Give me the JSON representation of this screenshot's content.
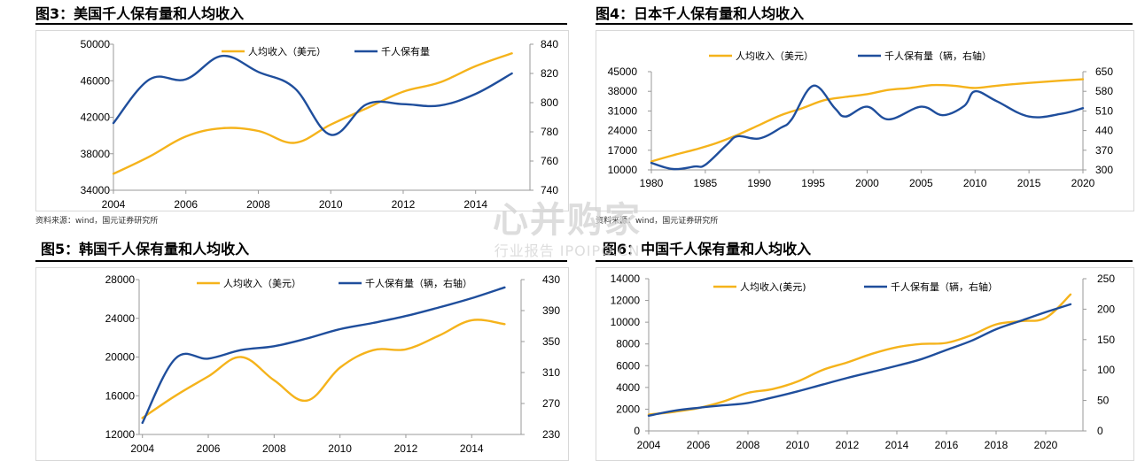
{
  "colors": {
    "income": "#F5B31B",
    "cars": "#1F4E9C"
  },
  "source_note": "资料来源：wind，国元证券研究所",
  "source_note_2": "资料来源：wind，国元证券研究所",
  "watermark": {
    "main": "心并购家",
    "sub": "行业报告 IPOIPO.CN"
  },
  "panels": [
    {
      "title": "图3：美国千人保有量和人均收入"
    },
    {
      "title": "图4：日本千人保有量和人均收入"
    },
    {
      "title": "图5：韩国千人保有量和人均收入"
    },
    {
      "title": "图6：中国千人保有量和人均收入"
    }
  ],
  "chart_data": [
    {
      "type": "line",
      "title": "图3：美国千人保有量和人均收入",
      "legend": [
        "人均收入（美元）",
        "千人保有量"
      ],
      "legend_placement": "top-center",
      "x_ticks": [
        2004,
        2006,
        2008,
        2010,
        2012,
        2014
      ],
      "xlim": [
        2004,
        2015.5
      ],
      "y_left": {
        "ticks": [
          34000,
          38000,
          42000,
          46000,
          50000
        ],
        "lim": [
          34000,
          50000
        ]
      },
      "y_right": {
        "ticks": [
          740,
          760,
          780,
          800,
          820,
          840
        ],
        "lim": [
          740,
          840
        ]
      },
      "series": [
        {
          "name": "人均收入（美元）",
          "axis": "left",
          "color": "#F5B31B",
          "x": [
            2004,
            2005,
            2006,
            2007,
            2008,
            2009,
            2010,
            2011,
            2012,
            2013,
            2014,
            2015
          ],
          "y": [
            35800,
            37700,
            39900,
            40800,
            40500,
            39200,
            41200,
            43000,
            44800,
            45800,
            47600,
            49000
          ]
        },
        {
          "name": "千人保有量",
          "axis": "right",
          "color": "#1F4E9C",
          "x": [
            2004,
            2005,
            2006,
            2007,
            2008,
            2009,
            2010,
            2011,
            2012,
            2013,
            2014,
            2015
          ],
          "y": [
            786,
            816,
            816,
            832,
            821,
            810,
            778,
            799,
            799,
            798,
            806,
            820
          ]
        }
      ]
    },
    {
      "type": "line",
      "title": "图4：日本千人保有量和人均收入",
      "legend": [
        "人均收入（美元）",
        "千人保有量（辆，右轴）"
      ],
      "legend_placement": "top-center",
      "x_ticks": [
        1980,
        1985,
        1990,
        1995,
        2000,
        2005,
        2010,
        2015,
        2020
      ],
      "xlim": [
        1980,
        2020
      ],
      "y_left": {
        "ticks": [
          10000,
          17000,
          24000,
          31000,
          38000,
          45000
        ],
        "lim": [
          10000,
          45000
        ]
      },
      "y_right": {
        "ticks": [
          300,
          370,
          440,
          510,
          580,
          650
        ],
        "lim": [
          300,
          650
        ]
      },
      "series": [
        {
          "name": "人均收入（美元）",
          "axis": "left",
          "color": "#F5B31B",
          "x": [
            1980,
            1982,
            1984,
            1986,
            1988,
            1990,
            1992,
            1994,
            1996,
            1998,
            2000,
            2002,
            2004,
            2006,
            2008,
            2010,
            2012,
            2015,
            2018,
            2020
          ],
          "y": [
            13000,
            15200,
            17200,
            19500,
            22500,
            26000,
            29500,
            32000,
            34800,
            36000,
            37000,
            38500,
            39200,
            40200,
            40000,
            39200,
            40000,
            41000,
            41800,
            42300
          ]
        },
        {
          "name": "千人保有量（辆，右轴）",
          "axis": "right",
          "color": "#1F4E9C",
          "x": [
            1980,
            1982,
            1984,
            1985,
            1987,
            1988,
            1990,
            1992,
            1993,
            1995,
            1997,
            1998,
            2000,
            2002,
            2005,
            2007,
            2009,
            2010,
            2012,
            2015,
            2018,
            2020
          ],
          "y": [
            325,
            303,
            312,
            318,
            390,
            420,
            412,
            450,
            480,
            600,
            520,
            490,
            525,
            480,
            525,
            495,
            528,
            580,
            545,
            490,
            500,
            520
          ]
        }
      ]
    },
    {
      "type": "line",
      "title": "图5：韩国千人保有量和人均收入",
      "legend": [
        "人均收入（美元）",
        "千人保有量（辆，右轴）"
      ],
      "legend_placement": "top-center",
      "x_ticks": [
        2004,
        2006,
        2008,
        2010,
        2012,
        2014
      ],
      "xlim": [
        2003.9,
        2015.5
      ],
      "y_left": {
        "ticks": [
          12000,
          16000,
          20000,
          24000,
          28000
        ],
        "lim": [
          12000,
          28000
        ]
      },
      "y_right": {
        "ticks": [
          230,
          270,
          310,
          350,
          390,
          430
        ],
        "lim": [
          230,
          430
        ]
      },
      "series": [
        {
          "name": "人均收入（美元）",
          "axis": "left",
          "color": "#F5B31B",
          "x": [
            2004,
            2005,
            2006,
            2007,
            2008,
            2009,
            2010,
            2011,
            2012,
            2013,
            2014,
            2015
          ],
          "y": [
            13700,
            16000,
            18000,
            20000,
            17600,
            15500,
            18900,
            20700,
            20800,
            22200,
            23800,
            23400
          ]
        },
        {
          "name": "千人保有量（辆，右轴）",
          "axis": "right",
          "color": "#1F4E9C",
          "x": [
            2004,
            2005,
            2006,
            2007,
            2008,
            2009,
            2010,
            2011,
            2012,
            2013,
            2014,
            2015
          ],
          "y": [
            245,
            328,
            328,
            339,
            344,
            354,
            366,
            374,
            383,
            394,
            406,
            420
          ]
        }
      ]
    },
    {
      "type": "line",
      "title": "图6：中国千人保有量和人均收入",
      "legend": [
        "人均收入(美元)",
        "千人保有量（辆，右轴）"
      ],
      "legend_placement": "top-center",
      "x_ticks": [
        2004,
        2006,
        2008,
        2010,
        2012,
        2014,
        2016,
        2018,
        2020
      ],
      "xlim": [
        2004,
        2021.5
      ],
      "y_left": {
        "ticks": [
          0,
          2000,
          4000,
          6000,
          8000,
          10000,
          12000,
          14000
        ],
        "lim": [
          0,
          14000
        ]
      },
      "y_right": {
        "ticks": [
          0,
          50,
          100,
          150,
          200,
          250
        ],
        "lim": [
          0,
          250
        ]
      },
      "series": [
        {
          "name": "人均收入(美元)",
          "axis": "left",
          "color": "#F5B31B",
          "x": [
            2004,
            2005,
            2006,
            2007,
            2008,
            2009,
            2010,
            2011,
            2012,
            2013,
            2014,
            2015,
            2016,
            2017,
            2018,
            2019,
            2020,
            2021
          ],
          "y": [
            1500,
            1750,
            2100,
            2700,
            3500,
            3850,
            4550,
            5600,
            6300,
            7100,
            7700,
            8000,
            8100,
            8800,
            9800,
            10100,
            10400,
            12550
          ]
        },
        {
          "name": "千人保有量（辆，右轴）",
          "axis": "right",
          "color": "#1F4E9C",
          "x": [
            2004,
            2005,
            2006,
            2007,
            2008,
            2009,
            2010,
            2011,
            2012,
            2013,
            2014,
            2015,
            2016,
            2017,
            2018,
            2019,
            2020,
            2021
          ],
          "y": [
            25,
            33,
            38,
            42,
            46,
            55,
            65,
            76,
            87,
            97,
            107,
            118,
            133,
            148,
            167,
            181,
            195,
            208
          ]
        }
      ]
    }
  ]
}
